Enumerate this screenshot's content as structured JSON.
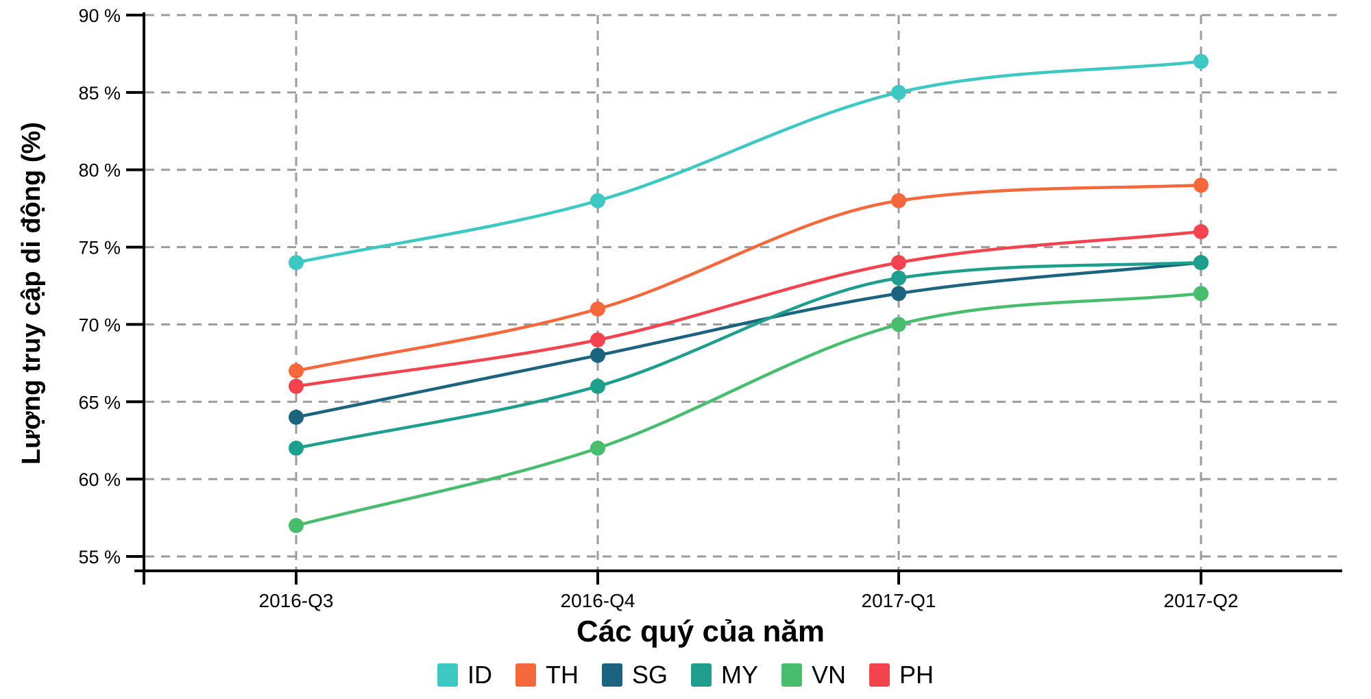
{
  "chart_data": {
    "type": "line",
    "title": "",
    "xlabel": "Các quý của năm",
    "ylabel": "Lượng truy cập di động (%)",
    "categories": [
      "2016-Q3",
      "2016-Q4",
      "2017-Q1",
      "2017-Q2"
    ],
    "series": [
      {
        "name": "ID",
        "color": "#3EC8C3",
        "values": [
          74,
          78,
          85,
          87
        ]
      },
      {
        "name": "TH",
        "color": "#F5683B",
        "values": [
          67,
          71,
          78,
          79
        ]
      },
      {
        "name": "SG",
        "color": "#1C6380",
        "values": [
          64,
          68,
          72,
          74
        ]
      },
      {
        "name": "MY",
        "color": "#1E9E8C",
        "values": [
          62,
          66,
          73,
          74
        ]
      },
      {
        "name": "VN",
        "color": "#49BD6E",
        "values": [
          57,
          62,
          70,
          72
        ]
      },
      {
        "name": "PH",
        "color": "#F2434F",
        "values": [
          66,
          69,
          74,
          76
        ]
      }
    ],
    "yticks": [
      90,
      85,
      80,
      75,
      70,
      65,
      60,
      55
    ],
    "ytick_suffix": " %",
    "ylim": [
      54,
      90
    ],
    "grid": "dashed-both",
    "gridline_color": "#9B9B9B",
    "axis_color": "#000000",
    "legend_position": "bottom",
    "marker": "circle",
    "curve": "smooth-monotone"
  }
}
